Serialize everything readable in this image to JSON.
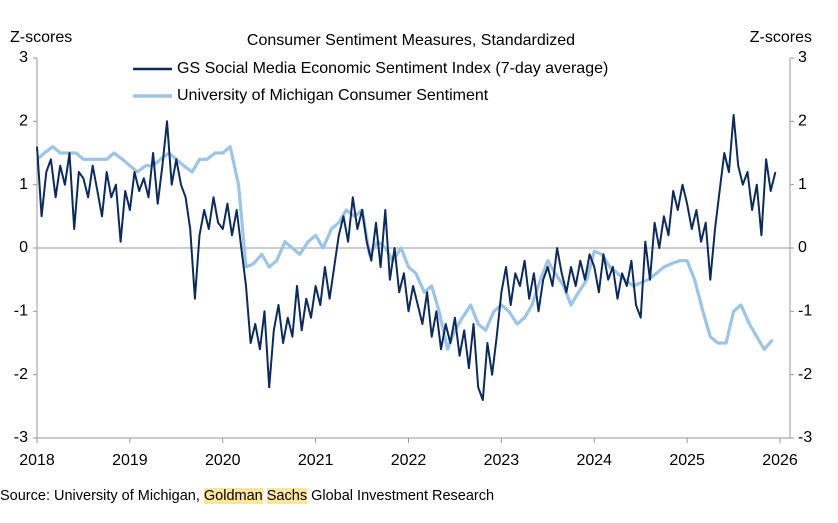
{
  "chart_data": {
    "type": "line",
    "title": "Consumer Sentiment Measures, Standardized",
    "y_label": "Z-scores",
    "y2_label": "Z-scores",
    "xlim": [
      2018,
      2026
    ],
    "xticks": [
      2018,
      2019,
      2020,
      2021,
      2022,
      2023,
      2024,
      2025,
      2026
    ],
    "ylim": [
      -3,
      3
    ],
    "yticks": [
      -3,
      -2,
      -1,
      0,
      1,
      2,
      3
    ],
    "y2lim": [
      -3,
      3
    ],
    "y2ticks": [
      -3,
      -2,
      -1,
      0,
      1,
      2,
      3
    ],
    "series": [
      {
        "name": "GS Social Media Economic Sentiment Index (7-day average)",
        "color": "#0d2b5a",
        "x": [
          2018,
          2018.05,
          2018.1,
          2018.15,
          2018.2,
          2018.25,
          2018.3,
          2018.35,
          2018.4,
          2018.45,
          2018.5,
          2018.55,
          2018.6,
          2018.65,
          2018.7,
          2018.75,
          2018.8,
          2018.85,
          2018.9,
          2018.95,
          2019,
          2019.05,
          2019.1,
          2019.15,
          2019.2,
          2019.25,
          2019.3,
          2019.35,
          2019.4,
          2019.45,
          2019.5,
          2019.55,
          2019.6,
          2019.65,
          2019.7,
          2019.75,
          2019.8,
          2019.85,
          2019.9,
          2019.95,
          2020,
          2020.05,
          2020.1,
          2020.15,
          2020.2,
          2020.25,
          2020.3,
          2020.35,
          2020.4,
          2020.45,
          2020.5,
          2020.55,
          2020.6,
          2020.65,
          2020.7,
          2020.75,
          2020.8,
          2020.85,
          2020.9,
          2020.95,
          2021,
          2021.05,
          2021.1,
          2021.15,
          2021.2,
          2021.25,
          2021.3,
          2021.35,
          2021.4,
          2021.45,
          2021.5,
          2021.55,
          2021.6,
          2021.65,
          2021.7,
          2021.75,
          2021.8,
          2021.85,
          2021.9,
          2021.95,
          2022,
          2022.05,
          2022.1,
          2022.15,
          2022.2,
          2022.25,
          2022.3,
          2022.35,
          2022.4,
          2022.45,
          2022.5,
          2022.55,
          2022.6,
          2022.65,
          2022.7,
          2022.75,
          2022.8,
          2022.85,
          2022.9,
          2022.95,
          2023,
          2023.05,
          2023.1,
          2023.15,
          2023.2,
          2023.25,
          2023.3,
          2023.35,
          2023.4,
          2023.45,
          2023.5,
          2023.55,
          2023.6,
          2023.65,
          2023.7,
          2023.75,
          2023.8,
          2023.85,
          2023.9,
          2023.95,
          2024,
          2024.05,
          2024.1,
          2024.15,
          2024.2,
          2024.25,
          2024.3,
          2024.35,
          2024.4,
          2024.45,
          2024.5,
          2024.55,
          2024.6,
          2024.65,
          2024.7,
          2024.75,
          2024.8,
          2024.85,
          2024.9,
          2024.95,
          2025,
          2025.05,
          2025.1,
          2025.15,
          2025.2,
          2025.25,
          2025.3,
          2025.35,
          2025.4,
          2025.45,
          2025.5,
          2025.55,
          2025.6,
          2025.65,
          2025.7,
          2025.75,
          2025.8,
          2025.85,
          2025.9,
          2025.95
        ],
        "values": [
          1.6,
          0.5,
          1.2,
          1.4,
          0.8,
          1.3,
          1.0,
          1.5,
          0.3,
          1.2,
          1.1,
          0.8,
          1.3,
          0.9,
          0.5,
          1.2,
          0.8,
          1.0,
          0.1,
          0.9,
          0.6,
          1.2,
          0.9,
          1.1,
          0.8,
          1.5,
          0.7,
          1.3,
          2.0,
          1.0,
          1.4,
          1.0,
          0.8,
          0.3,
          -0.8,
          0.2,
          0.6,
          0.3,
          0.8,
          0.4,
          0.3,
          0.7,
          0.2,
          0.6,
          0.0,
          -0.6,
          -1.5,
          -1.2,
          -1.6,
          -1.0,
          -2.2,
          -1.3,
          -0.9,
          -1.5,
          -1.1,
          -1.4,
          -0.6,
          -1.3,
          -0.8,
          -1.1,
          -0.6,
          -0.9,
          -0.3,
          -0.8,
          -0.3,
          0.2,
          0.5,
          0.1,
          0.8,
          0.3,
          0.6,
          0.1,
          -0.2,
          0.4,
          -0.3,
          0.6,
          -0.5,
          0.0,
          -0.7,
          -0.4,
          -1.0,
          -0.6,
          -0.9,
          -1.2,
          -0.7,
          -1.4,
          -1.0,
          -1.6,
          -1.2,
          -1.5,
          -1.1,
          -1.7,
          -1.3,
          -1.9,
          -1.2,
          -2.2,
          -2.4,
          -1.5,
          -2.0,
          -1.4,
          -0.7,
          -0.3,
          -0.9,
          -0.4,
          -0.6,
          -0.2,
          -0.8,
          -0.4,
          -1.0,
          -0.5,
          -0.3,
          -0.6,
          0.0,
          -0.4,
          -0.7,
          -0.3,
          -0.6,
          -0.2,
          -0.5,
          -0.1,
          -0.3,
          -0.7,
          -0.1,
          -0.5,
          -0.3,
          -0.8,
          -0.4,
          -0.6,
          -0.2,
          -0.9,
          -1.1,
          0.1,
          -0.5,
          0.4,
          0.0,
          0.5,
          0.2,
          0.9,
          0.6,
          1.0,
          0.7,
          0.3,
          0.6,
          0.1,
          0.4,
          -0.5,
          0.3,
          0.9,
          1.5,
          1.2,
          2.1,
          1.3,
          1.0,
          1.2,
          0.6,
          1.0,
          0.2,
          1.4,
          0.9,
          1.2
        ]
      },
      {
        "name": "University of Michigan Consumer Sentiment",
        "color": "#9dc3e6",
        "x": [
          2018,
          2018.08,
          2018.17,
          2018.25,
          2018.33,
          2018.42,
          2018.5,
          2018.58,
          2018.67,
          2018.75,
          2018.83,
          2018.92,
          2019,
          2019.08,
          2019.17,
          2019.25,
          2019.33,
          2019.42,
          2019.5,
          2019.58,
          2019.67,
          2019.75,
          2019.83,
          2019.92,
          2020,
          2020.08,
          2020.17,
          2020.25,
          2020.33,
          2020.42,
          2020.5,
          2020.58,
          2020.67,
          2020.75,
          2020.83,
          2020.92,
          2021,
          2021.08,
          2021.17,
          2021.25,
          2021.33,
          2021.42,
          2021.5,
          2021.58,
          2021.67,
          2021.75,
          2021.83,
          2021.92,
          2022,
          2022.08,
          2022.17,
          2022.25,
          2022.33,
          2022.42,
          2022.5,
          2022.58,
          2022.67,
          2022.75,
          2022.83,
          2022.92,
          2023,
          2023.08,
          2023.17,
          2023.25,
          2023.33,
          2023.42,
          2023.5,
          2023.58,
          2023.67,
          2023.75,
          2023.83,
          2023.92,
          2024,
          2024.08,
          2024.17,
          2024.25,
          2024.33,
          2024.42,
          2024.5,
          2024.58,
          2024.67,
          2024.75,
          2024.83,
          2024.92,
          2025,
          2025.08,
          2025.17,
          2025.25,
          2025.33,
          2025.42,
          2025.5,
          2025.58,
          2025.67,
          2025.75,
          2025.83,
          2025.92
        ],
        "values": [
          1.4,
          1.5,
          1.6,
          1.5,
          1.5,
          1.5,
          1.4,
          1.4,
          1.4,
          1.4,
          1.5,
          1.4,
          1.3,
          1.2,
          1.3,
          1.3,
          1.4,
          1.5,
          1.4,
          1.3,
          1.2,
          1.4,
          1.4,
          1.5,
          1.5,
          1.6,
          1.0,
          -0.3,
          -0.25,
          -0.1,
          -0.3,
          -0.2,
          0.1,
          0.0,
          -0.1,
          0.1,
          0.2,
          0.0,
          0.3,
          0.4,
          0.6,
          0.5,
          0.6,
          -0.1,
          0.1,
          0.0,
          -0.2,
          0.0,
          -0.3,
          -0.4,
          -0.7,
          -0.6,
          -1.0,
          -1.6,
          -1.3,
          -1.1,
          -0.9,
          -1.2,
          -1.3,
          -1.0,
          -0.9,
          -1.0,
          -1.2,
          -1.1,
          -0.9,
          -0.5,
          -0.2,
          -0.4,
          -0.6,
          -0.9,
          -0.7,
          -0.5,
          -0.05,
          -0.1,
          -0.3,
          -0.4,
          -0.5,
          -0.6,
          -0.55,
          -0.5,
          -0.4,
          -0.3,
          -0.25,
          -0.2,
          -0.2,
          -0.5,
          -1.0,
          -1.4,
          -1.5,
          -1.5,
          -1.0,
          -0.9,
          -1.2,
          -1.4,
          -1.6,
          -1.45
        ]
      }
    ],
    "source": [
      "Source: University of Michigan,",
      "Goldman",
      "Sachs",
      "Global Investment Research"
    ]
  }
}
